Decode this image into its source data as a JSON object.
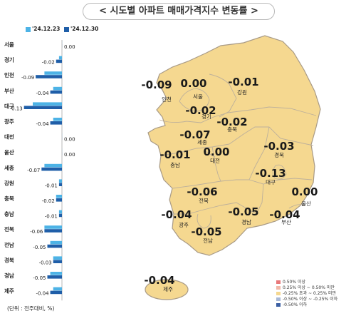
{
  "title": "< 시도별 아파트 매매가격지수 변동률 >",
  "legend": {
    "series_a": {
      "label": "'24.12.23",
      "color": "#4db3e6"
    },
    "series_b": {
      "label": "'24.12.30",
      "color": "#1f5ea8"
    }
  },
  "unit_note": "(단위 : 전주대비, %)",
  "chart_data": {
    "type": "bar",
    "orientation": "horizontal",
    "categories": [
      "서울",
      "경기",
      "인천",
      "부산",
      "대구",
      "광주",
      "대전",
      "울산",
      "세종",
      "강원",
      "충북",
      "충남",
      "전북",
      "전남",
      "경북",
      "경남",
      "제주"
    ],
    "series": [
      {
        "name": "'24.12.23",
        "values": [
          0.0,
          -0.01,
          -0.06,
          -0.03,
          -0.1,
          -0.03,
          0.0,
          0.0,
          -0.06,
          -0.01,
          -0.02,
          -0.01,
          -0.06,
          -0.04,
          -0.03,
          -0.04,
          -0.03
        ]
      },
      {
        "name": "'24.12.30",
        "values": [
          0.0,
          -0.02,
          -0.09,
          -0.04,
          -0.13,
          -0.04,
          0.0,
          0.0,
          -0.07,
          -0.01,
          -0.02,
          -0.01,
          -0.06,
          -0.05,
          -0.03,
          -0.05,
          -0.04
        ]
      }
    ],
    "value_labels": [
      "0.00",
      "-0.02",
      "-0.09",
      "-0.04",
      "-0.13",
      "-0.04",
      "0.00",
      "0.00",
      "-0.07",
      "-0.01",
      "-0.02",
      "-0.01",
      "-0.06",
      "-0.05",
      "-0.03",
      "-0.05",
      "-0.04"
    ],
    "xlim": [
      -0.15,
      0.02
    ]
  },
  "map": {
    "regions": [
      {
        "name": "인천",
        "value": "-0.09"
      },
      {
        "name": "서울",
        "value": "0.00"
      },
      {
        "name": "강원",
        "value": "-0.01"
      },
      {
        "name": "경기",
        "value": "-0.02"
      },
      {
        "name": "충북",
        "value": "-0.02"
      },
      {
        "name": "세종",
        "value": "-0.07"
      },
      {
        "name": "충남",
        "value": "-0.01"
      },
      {
        "name": "대전",
        "value": "0.00"
      },
      {
        "name": "경북",
        "value": "-0.03"
      },
      {
        "name": "대구",
        "value": "-0.13"
      },
      {
        "name": "전북",
        "value": "-0.06"
      },
      {
        "name": "울산",
        "value": "0.00"
      },
      {
        "name": "광주",
        "value": "-0.04"
      },
      {
        "name": "경남",
        "value": "-0.05"
      },
      {
        "name": "부산",
        "value": "-0.04"
      },
      {
        "name": "전남",
        "value": "-0.05"
      },
      {
        "name": "제주",
        "value": "-0.04"
      }
    ],
    "legend": [
      {
        "label": "0.50% 이상",
        "color": "#e8787a"
      },
      {
        "label": "0.25% 이상 ~ 0.50% 미만",
        "color": "#f2b8a8"
      },
      {
        "label": "-0.25% 초과 ~ 0.25% 미만",
        "color": "#f5d890"
      },
      {
        "label": "-0.50% 이상 ~ -0.25% 이하",
        "color": "#a9b9d6"
      },
      {
        "label": "-0.50% 이하",
        "color": "#3b5fa3"
      }
    ],
    "fill_color": "#f5d890"
  }
}
